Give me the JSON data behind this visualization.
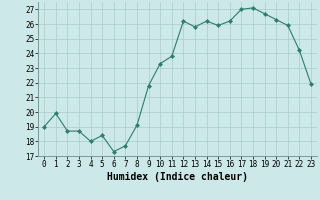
{
  "x": [
    0,
    1,
    2,
    3,
    4,
    5,
    6,
    7,
    8,
    9,
    10,
    11,
    12,
    13,
    14,
    15,
    16,
    17,
    18,
    19,
    20,
    21,
    22,
    23
  ],
  "y": [
    19.0,
    19.9,
    18.7,
    18.7,
    18.0,
    18.4,
    17.3,
    17.7,
    19.1,
    21.8,
    23.3,
    23.8,
    26.2,
    25.8,
    26.2,
    25.9,
    26.2,
    27.0,
    27.1,
    26.7,
    26.3,
    25.9,
    24.2,
    21.9
  ],
  "line_color": "#2e7d6e",
  "marker": "D",
  "marker_size": 2.0,
  "bg_color": "#cce8e8",
  "grid_color": "#aacccc",
  "xlabel": "Humidex (Indice chaleur)",
  "ylim": [
    17,
    27.5
  ],
  "xlim": [
    -0.5,
    23.5
  ],
  "yticks": [
    17,
    18,
    19,
    20,
    21,
    22,
    23,
    24,
    25,
    26,
    27
  ],
  "xticks": [
    0,
    1,
    2,
    3,
    4,
    5,
    6,
    7,
    8,
    9,
    10,
    11,
    12,
    13,
    14,
    15,
    16,
    17,
    18,
    19,
    20,
    21,
    22,
    23
  ],
  "xtick_labels": [
    "0",
    "1",
    "2",
    "3",
    "4",
    "5",
    "6",
    "7",
    "8",
    "9",
    "10",
    "11",
    "12",
    "13",
    "14",
    "15",
    "16",
    "17",
    "18",
    "19",
    "20",
    "21",
    "22",
    "23"
  ],
  "tick_fontsize": 5.5,
  "xlabel_fontsize": 7.0,
  "linewidth": 0.8
}
